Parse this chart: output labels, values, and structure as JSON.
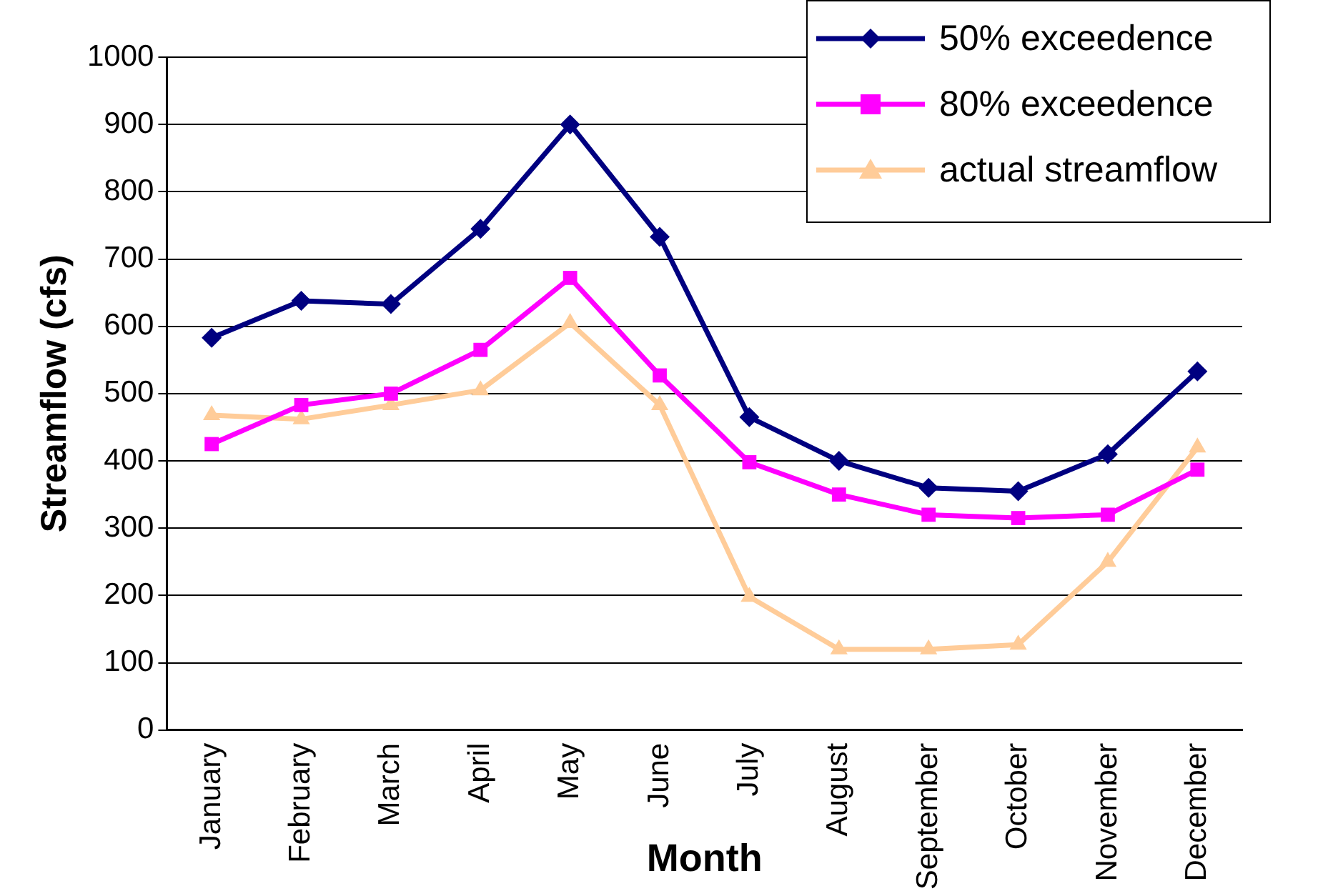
{
  "chart_data": {
    "type": "line",
    "xlabel": "Month",
    "ylabel": "Streamflow (cfs)",
    "categories": [
      "January",
      "February",
      "March",
      "April",
      "May",
      "June",
      "July",
      "August",
      "September",
      "October",
      "November",
      "December"
    ],
    "series": [
      {
        "name": "50% exceedence",
        "color": "#000080",
        "marker": "diamond",
        "values": [
          583,
          638,
          633,
          745,
          900,
          733,
          465,
          400,
          360,
          355,
          410,
          533
        ]
      },
      {
        "name": "80% exceedence",
        "color": "#ff00ff",
        "marker": "square",
        "values": [
          425,
          483,
          500,
          565,
          672,
          527,
          398,
          350,
          320,
          315,
          320,
          387
        ]
      },
      {
        "name": "actual streamflow",
        "color": "#ffcc99",
        "marker": "triangle",
        "values": [
          468,
          462,
          483,
          505,
          605,
          483,
          198,
          120,
          120,
          127,
          250,
          420
        ]
      }
    ],
    "ylim": [
      0,
      1000
    ],
    "yticks": [
      0,
      100,
      200,
      300,
      400,
      500,
      600,
      700,
      800,
      900,
      1000
    ],
    "grid": "y",
    "legend": "top right",
    "line_style": "solid"
  }
}
